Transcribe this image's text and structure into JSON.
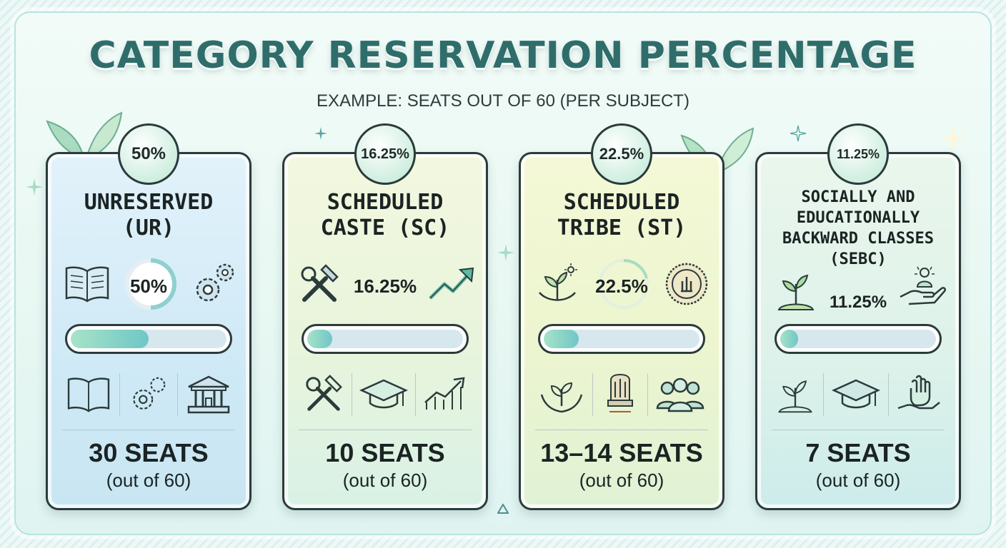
{
  "header": {
    "title": "CATEGORY RESERVATION PERCENTAGE",
    "subtitle": "EXAMPLE: SEATS OUT OF 60 (PER SUBJECT)"
  },
  "colors": {
    "title": "#2f6d6b",
    "border": "#2b3b3b",
    "bar_fill": "#6fc6c7"
  },
  "cards": [
    {
      "badge": "50%",
      "category": "UNRESERVED (UR)",
      "percent_label": "50%",
      "progress_fraction": 0.5,
      "seats": "30 SEATS",
      "out_of": "(out of 60)",
      "icons": [
        "book-icon",
        "gears-icon",
        "book-icon",
        "gears-icon",
        "bank-building-icon"
      ]
    },
    {
      "badge": "16.25%",
      "category": "SCHEDULED CASTE (SC)",
      "percent_label": "16.25%",
      "progress_fraction": 0.1625,
      "seats": "10 SEATS",
      "out_of": "(out of 60)",
      "icons": [
        "hammer-wrench-icon",
        "trend-up-icon",
        "tools-icon",
        "graduation-cap-icon",
        "growth-chart-icon"
      ]
    },
    {
      "badge": "22.5%",
      "category": "SCHEDULED TRIBE (ST)",
      "percent_label": "22.5%",
      "progress_fraction": 0.225,
      "seats": "13–14 SEATS",
      "out_of": "(out of 60)",
      "icons": [
        "plant-sun-icon",
        "emblem-seal-icon",
        "hands-plant-icon",
        "national-emblem-icon",
        "people-group-icon"
      ]
    },
    {
      "badge": "11.25%",
      "category": "SOCIALLY AND EDUCATIONALLY BACKWARD CLASSES (SEBC)",
      "percent_label": "11.25%",
      "progress_fraction": 0.1125,
      "seats": "7 SEATS",
      "out_of": "(out of 60)",
      "icons": [
        "sprout-icon",
        "hand-person-icon",
        "sprout-icon",
        "graduation-cap-icon",
        "raised-hand-icon"
      ]
    }
  ]
}
